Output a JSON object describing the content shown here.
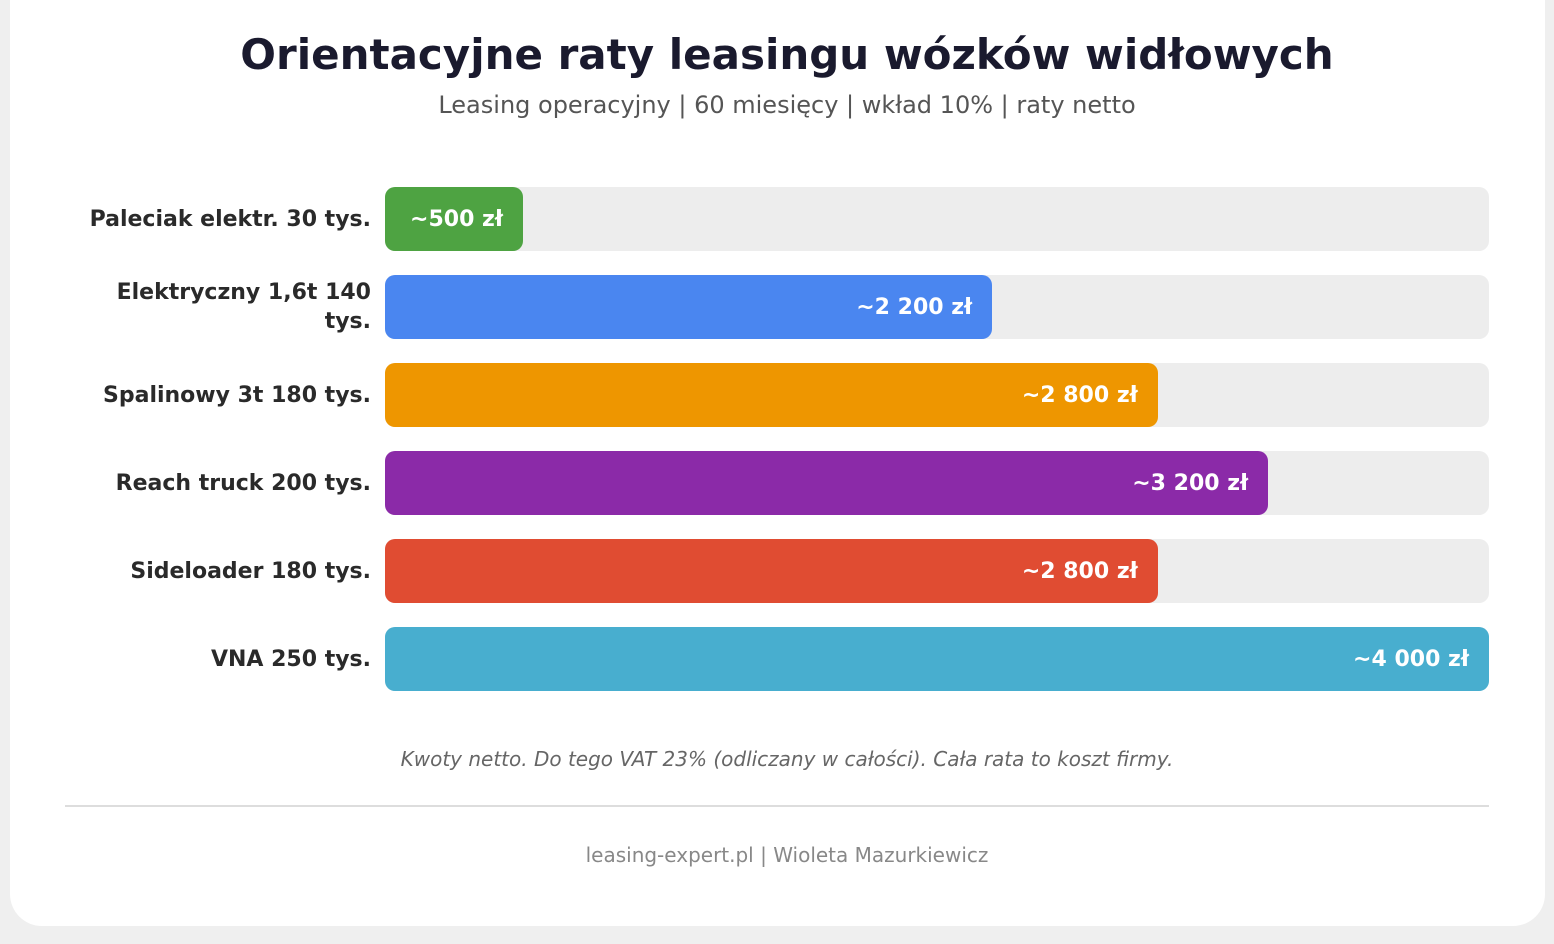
{
  "chart_data": {
    "type": "bar",
    "title": "Orientacyjne raty leasingu wózków widłowych",
    "subtitle": "Leasing operacyjny | 60 miesięcy | wkład 10% | raty netto",
    "categories": [
      "Paleciak elektr. 30 tys.",
      "Elektryczny 1,6t 140 tys.",
      "Spalinowy 3t 180 tys.",
      "Reach truck 200 tys.",
      "Sideloader 180 tys.",
      "VNA 250 tys."
    ],
    "values": [
      500,
      2200,
      2800,
      3200,
      2800,
      4000
    ],
    "value_labels": [
      "~500 zł",
      "~2 200 zł",
      "~2 800 zł",
      "~3 200 zł",
      "~2 800 zł",
      "~4 000 zł"
    ],
    "colors": [
      "#4ea342",
      "#4a86f0",
      "#ee9600",
      "#8b2aa8",
      "#e04c32",
      "#48aecf"
    ],
    "xlim": [
      0,
      4000
    ],
    "note": "Kwoty netto. Do tego VAT 23% (odliczany w całości). Cała rata to koszt firmy.",
    "footer": "leasing-expert.pl | Wioleta Mazurkiewicz"
  }
}
